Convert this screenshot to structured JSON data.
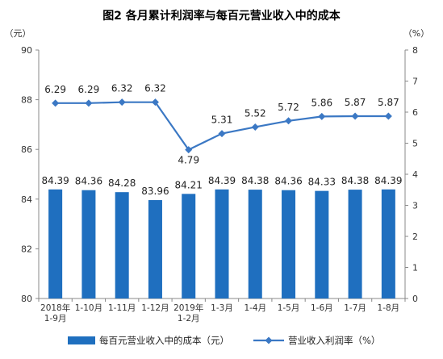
{
  "chart_data": {
    "type": "bar+line",
    "title": "图2  各月累计利润率与每百元营业收入中的成本",
    "categories": [
      [
        "2018年",
        "1-9月"
      ],
      [
        "1-10月"
      ],
      [
        "1-11月"
      ],
      [
        "1-12月"
      ],
      [
        "2019年",
        "1-2月"
      ],
      [
        "1-3月"
      ],
      [
        "1-4月"
      ],
      [
        "1-5月"
      ],
      [
        "1-6月"
      ],
      [
        "1-7月"
      ],
      [
        "1-8月"
      ]
    ],
    "left_axis": {
      "unit": "（元）",
      "range": [
        80,
        90
      ],
      "ticks": [
        "80",
        "82",
        "84",
        "86",
        "88",
        "90"
      ]
    },
    "right_axis": {
      "unit": "（%）",
      "range": [
        0,
        8
      ],
      "ticks": [
        "0",
        "1",
        "2",
        "3",
        "4",
        "5",
        "6",
        "7",
        "8"
      ]
    },
    "series": [
      {
        "name": "每百元营业收入中的成本（元）",
        "type": "bar",
        "axis": "left",
        "color": "#1f6fbf",
        "values": [
          84.39,
          84.36,
          84.28,
          83.96,
          84.21,
          84.39,
          84.38,
          84.36,
          84.33,
          84.38,
          84.39
        ],
        "labels": [
          "84.39",
          "84.36",
          "84.28",
          "83.96",
          "84.21",
          "84.39",
          "84.38",
          "84.36",
          "84.33",
          "84.38",
          "84.39"
        ]
      },
      {
        "name": "营业收入利润率（%）",
        "type": "line",
        "axis": "right",
        "color": "#3b78c4",
        "values": [
          6.29,
          6.29,
          6.32,
          6.32,
          4.79,
          5.31,
          5.52,
          5.72,
          5.86,
          5.87,
          5.87
        ],
        "labels": [
          "6.29",
          "6.29",
          "6.32",
          "6.32",
          "4.79",
          "5.31",
          "5.52",
          "5.72",
          "5.86",
          "5.87",
          "5.87"
        ]
      }
    ],
    "legend": "bottom"
  }
}
